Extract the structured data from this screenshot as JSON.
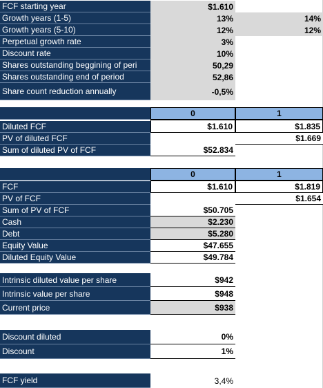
{
  "col0": "0",
  "col1": "1",
  "rows": {
    "fcf_start": {
      "label": "FCF starting year",
      "v1": "$1.610"
    },
    "growth_1_5": {
      "label": "Growth years (1-5)",
      "v1": "13%",
      "v2": "14%"
    },
    "growth_5_10": {
      "label": "Growth years (5-10)",
      "v1": "12%",
      "v2": "12%"
    },
    "perp_growth": {
      "label": "Perpetual growth rate",
      "v1": "3%"
    },
    "discount_rate": {
      "label": "Discount rate",
      "v1": "10%"
    },
    "shares_begin": {
      "label": "Shares outstanding beggining of peri",
      "v1": "50,29"
    },
    "shares_end": {
      "label": "Shares outstanding end of period",
      "v1": "52,86"
    },
    "share_reduction": {
      "label": "Share count reduction annually",
      "v1": "-0,5%"
    },
    "diluted_fcf": {
      "label": "Diluted FCF",
      "v1": "$1.610",
      "v2": "$1.835"
    },
    "pv_diluted_fcf": {
      "label": "PV of  diluted FCF",
      "v2": "$1.669"
    },
    "sum_diluted_pv": {
      "label": "Sum of diluted PV of FCF",
      "v1": "$52.834"
    },
    "fcf": {
      "label": "FCF",
      "v1": "$1.610",
      "v2": "$1.819"
    },
    "pv_fcf": {
      "label": "PV of FCF",
      "v2": "$1.654"
    },
    "sum_pv_fcf": {
      "label": "Sum of PV of FCF",
      "v1": "$50.705"
    },
    "cash": {
      "label": "Cash",
      "v1": "$2.230"
    },
    "debt": {
      "label": "Debt",
      "v1": "$5.280"
    },
    "equity_value": {
      "label": "Equity Value",
      "v1": "$47.655"
    },
    "diluted_equity": {
      "label": "Diluted Equity Value",
      "v1": "$49.784"
    },
    "intrinsic_diluted": {
      "label": "Intrinsic diluted value per share",
      "v1": "$942"
    },
    "intrinsic": {
      "label": "Intrinsic value per share",
      "v1": "$948"
    },
    "current_price": {
      "label": "Current price",
      "v1": "$938"
    },
    "discount_diluted": {
      "label": "Discount diluted",
      "v1": "0%"
    },
    "discount": {
      "label": "Discount",
      "v1": "1%"
    },
    "fcf_yield": {
      "label": "FCF yield",
      "v1": "3,4%"
    }
  }
}
